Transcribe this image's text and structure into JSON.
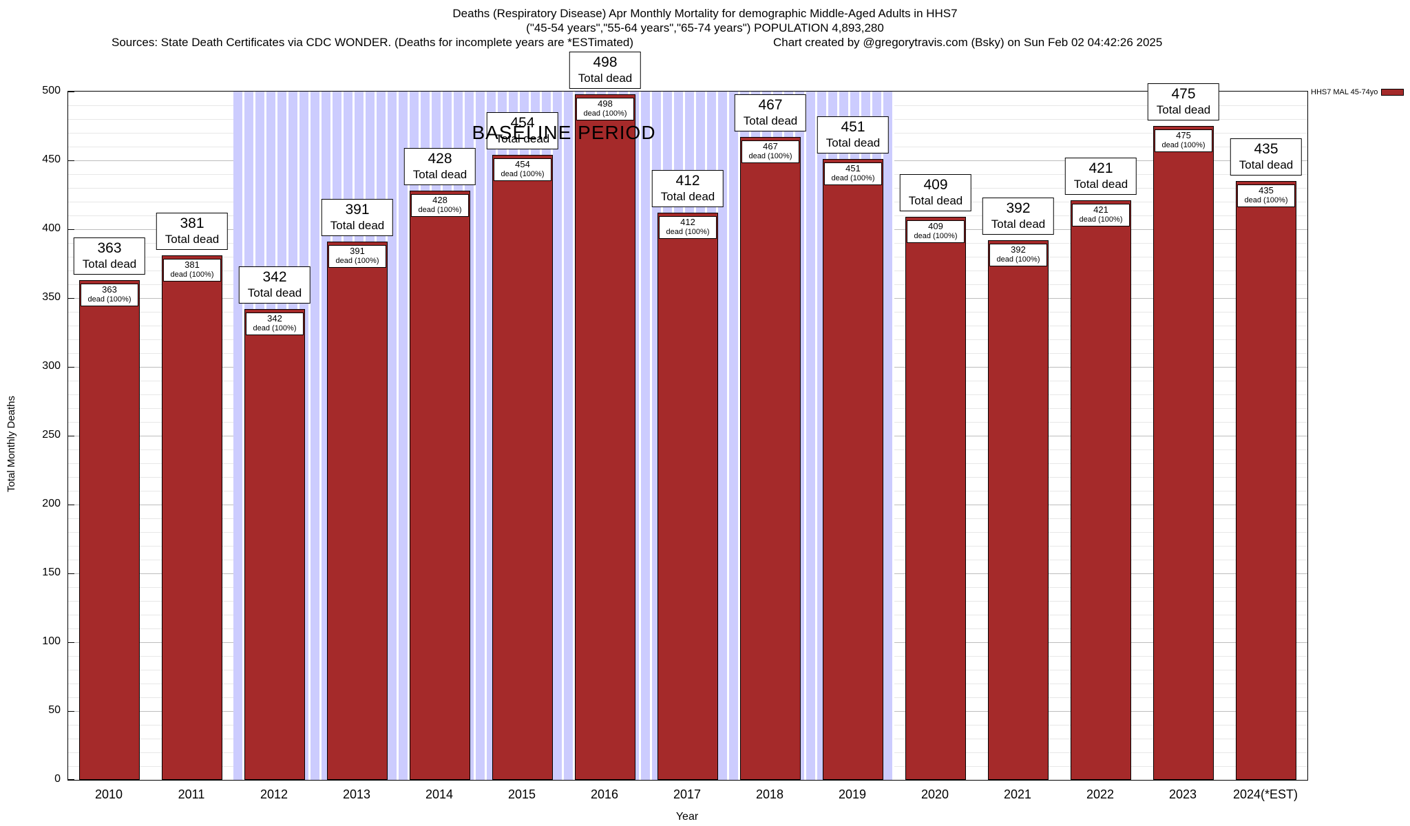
{
  "title": {
    "line1": "Deaths (Respiratory Disease) Apr Monthly Mortality for demographic Middle-Aged Adults in HHS7",
    "line2": "(\"45-54 years\",\"55-64 years\",\"65-74 years\") POPULATION 4,893,280",
    "sources": "Sources: State Death Certificates via CDC WONDER. (Deaths for incomplete years are *ESTimated)",
    "credit": "Chart created by @gregorytravis.com (Bsky) on Sun Feb 02 04:42:26 2025"
  },
  "legend": {
    "label": "HHS7 MAL 45-74yo",
    "swatch_color": "#a52a2a"
  },
  "baseline": {
    "label": "BASELINE PERIOD",
    "start_year": "2012",
    "end_year": "2019",
    "band_color": "#ccccfe",
    "band_stripe_color": "#ffffff"
  },
  "axes": {
    "ylabel": "Total Monthly Deaths",
    "xlabel": "Year",
    "ymin": 0,
    "ymax": 500,
    "ytick_step": 50,
    "minor_step": 10
  },
  "chart_data": {
    "type": "bar",
    "title": "Deaths (Respiratory Disease) Apr Monthly Mortality for demographic Middle-Aged Adults in HHS7",
    "subtitle": "(\"45-54 years\",\"55-64 years\",\"65-74 years\") POPULATION 4,893,280",
    "categories": [
      "2010",
      "2011",
      "2012",
      "2013",
      "2014",
      "2015",
      "2016",
      "2017",
      "2018",
      "2019",
      "2020",
      "2021",
      "2022",
      "2023",
      "2024(*EST)"
    ],
    "values": [
      363,
      381,
      342,
      391,
      428,
      454,
      498,
      412,
      467,
      451,
      409,
      392,
      421,
      475,
      435
    ],
    "bar_color": "#a52a2a",
    "xlabel": "Year",
    "ylabel": "Total Monthly Deaths",
    "ylim": [
      0,
      500
    ],
    "grid": true,
    "legend_position": "top-right",
    "legend_entries": [
      "HHS7 MAL 45-74yo"
    ],
    "bar_outer_label": "Total dead",
    "bar_inner_suffix": "dead (100%)",
    "baseline_period_years": [
      "2012",
      "2019"
    ],
    "annotations": [
      "BASELINE PERIOD"
    ]
  }
}
